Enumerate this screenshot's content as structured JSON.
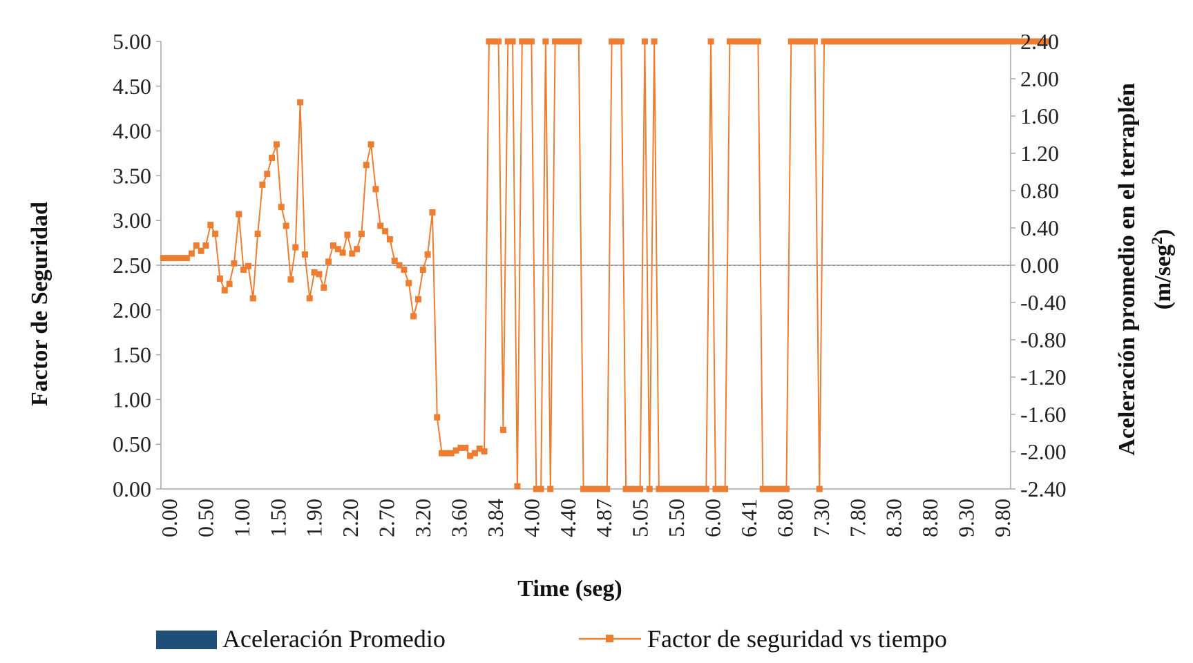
{
  "chart_data": {
    "type": "bar+line",
    "xlabel": "Time (seg)",
    "ylabel_left": "Factor de Seguridad",
    "ylabel_right_line1": "Aceleración promedio en el terraplén",
    "ylabel_right_line2_prefix": "(m/seg",
    "ylabel_right_line2_sup": "2",
    "ylabel_right_line2_suffix": ")",
    "left_ylim": [
      0,
      5
    ],
    "right_ylim": [
      -2.4,
      2.4
    ],
    "left_ticks": [
      "0.00",
      "0.50",
      "1.00",
      "1.50",
      "2.00",
      "2.50",
      "3.00",
      "3.50",
      "4.00",
      "4.50",
      "5.00"
    ],
    "right_ticks": [
      "-2.40",
      "-2.00",
      "-1.60",
      "-1.20",
      "-0.80",
      "-0.40",
      "0.00",
      "0.40",
      "0.80",
      "1.20",
      "1.60",
      "2.00",
      "2.40"
    ],
    "x_tick_labels": [
      "0.00",
      "0.50",
      "1.00",
      "1.50",
      "1.90",
      "2.20",
      "2.70",
      "3.20",
      "3.60",
      "3.84",
      "4.00",
      "4.40",
      "4.87",
      "5.05",
      "5.50",
      "6.00",
      "6.41",
      "6.80",
      "7.30",
      "7.80",
      "8.30",
      "8.80",
      "9.30",
      "9.80"
    ],
    "n_points": 180,
    "colors": {
      "bars": "#1f4e79",
      "line": "#ed7d31",
      "axis": "#a6a6a6"
    },
    "legend": [
      {
        "label": "Aceleración Promedio",
        "kind": "bar"
      },
      {
        "label": "Factor de seguridad vs tiempo",
        "kind": "line"
      }
    ],
    "series": [
      {
        "name": "Aceleración Promedio",
        "axis": "right",
        "values": [
          0,
          0,
          0,
          0,
          0,
          0,
          0,
          0,
          0,
          0,
          0,
          0,
          0,
          0,
          0,
          0,
          0,
          0,
          0,
          0,
          0,
          0,
          0,
          0,
          0,
          0,
          0,
          0,
          0,
          0,
          0,
          0,
          0,
          0,
          0,
          0,
          0,
          0,
          0,
          0,
          0,
          0,
          0,
          0,
          0,
          0,
          0,
          0,
          0,
          0,
          0,
          0,
          0,
          0,
          0,
          0,
          0,
          0,
          0,
          0,
          0,
          0,
          0,
          0,
          0,
          0,
          0,
          0,
          0,
          0,
          0,
          0,
          0,
          0,
          0,
          0,
          0,
          0,
          0,
          0,
          0,
          0,
          0,
          0,
          0,
          0,
          0,
          0,
          0,
          0,
          0,
          0,
          0,
          0,
          0,
          0,
          0,
          0,
          0,
          0,
          0,
          0,
          0,
          0,
          0,
          0,
          0,
          0,
          0,
          0,
          0,
          0,
          0,
          0,
          0,
          0,
          0,
          0,
          0,
          0,
          0,
          0,
          0,
          0,
          0,
          0,
          0,
          0,
          0,
          0,
          0,
          0,
          0,
          0,
          0,
          0,
          0,
          0,
          0,
          0,
          0,
          0,
          0,
          0,
          0,
          0,
          0,
          0,
          0,
          0,
          0,
          0,
          0,
          0,
          0,
          0,
          0,
          0,
          0,
          0,
          0,
          0,
          0,
          0,
          0,
          0,
          0,
          0,
          0,
          0,
          0,
          0,
          0,
          0,
          0,
          0,
          0,
          0,
          0,
          0
        ]
      },
      {
        "name": "Factor de seguridad vs tiempo",
        "axis": "left",
        "values": [
          2.58,
          2.58,
          2.58,
          2.58,
          2.58,
          2.58,
          2.63,
          2.72,
          2.66,
          2.72,
          2.95,
          2.85,
          2.35,
          2.22,
          2.29,
          2.52,
          3.07,
          2.45,
          2.49,
          2.13,
          2.85,
          3.4,
          3.52,
          3.7,
          3.85,
          3.15,
          2.94,
          2.34,
          2.7,
          4.32,
          2.62,
          2.13,
          2.42,
          2.4,
          2.25,
          2.54,
          2.72,
          2.68,
          2.64,
          2.84,
          2.63,
          2.68,
          2.85,
          3.62,
          3.85,
          3.35,
          2.94,
          2.88,
          2.79,
          2.55,
          2.5,
          2.45,
          2.3,
          1.93,
          2.12,
          2.45,
          2.62,
          3.09,
          0.8,
          0.4,
          0.4,
          0.4,
          0.43,
          0.46,
          0.46,
          0.37,
          0.4,
          0.45,
          0.42,
          5.0,
          5.0,
          5.0,
          0.66,
          5.0,
          5.0,
          0.03,
          5.0,
          5.0,
          5.0,
          0.0,
          0.0,
          5.0,
          0.0,
          5.0,
          5.0,
          5.0,
          5.0,
          5.0,
          5.0,
          0.0,
          0.0,
          0.0,
          0.0,
          0.0,
          0.0,
          5.0,
          5.0,
          5.0,
          0.0,
          0.0,
          0.0,
          0.0,
          5.0,
          0.0,
          5.0,
          0.0,
          0.0,
          0.0,
          0.0,
          0.0,
          0.0,
          0.0,
          0.0,
          0.0,
          0.0,
          0.0,
          5.0,
          0.0,
          0.0,
          0.0,
          5.0,
          5.0,
          5.0,
          5.0,
          5.0,
          5.0,
          5.0,
          0.0,
          0.0,
          0.0,
          0.0,
          0.0,
          0.0,
          5.0,
          5.0,
          5.0,
          5.0,
          5.0,
          5.0,
          0.0,
          5.0,
          5.0,
          5.0,
          5.0,
          5.0,
          5.0,
          5.0,
          5.0,
          5.0,
          5.0,
          5.0,
          5.0,
          5.0,
          5.0,
          5.0,
          5.0,
          5.0,
          5.0,
          5.0,
          5.0,
          5.0,
          5.0,
          5.0,
          5.0,
          5.0,
          5.0,
          5.0,
          5.0,
          5.0,
          5.0,
          5.0,
          5.0,
          5.0,
          5.0,
          5.0,
          5.0,
          5.0,
          5.0,
          5.0,
          5.0,
          5.0,
          5.0,
          5.0,
          5.0,
          5.0,
          5.0,
          5.0,
          5.0
        ]
      }
    ]
  }
}
